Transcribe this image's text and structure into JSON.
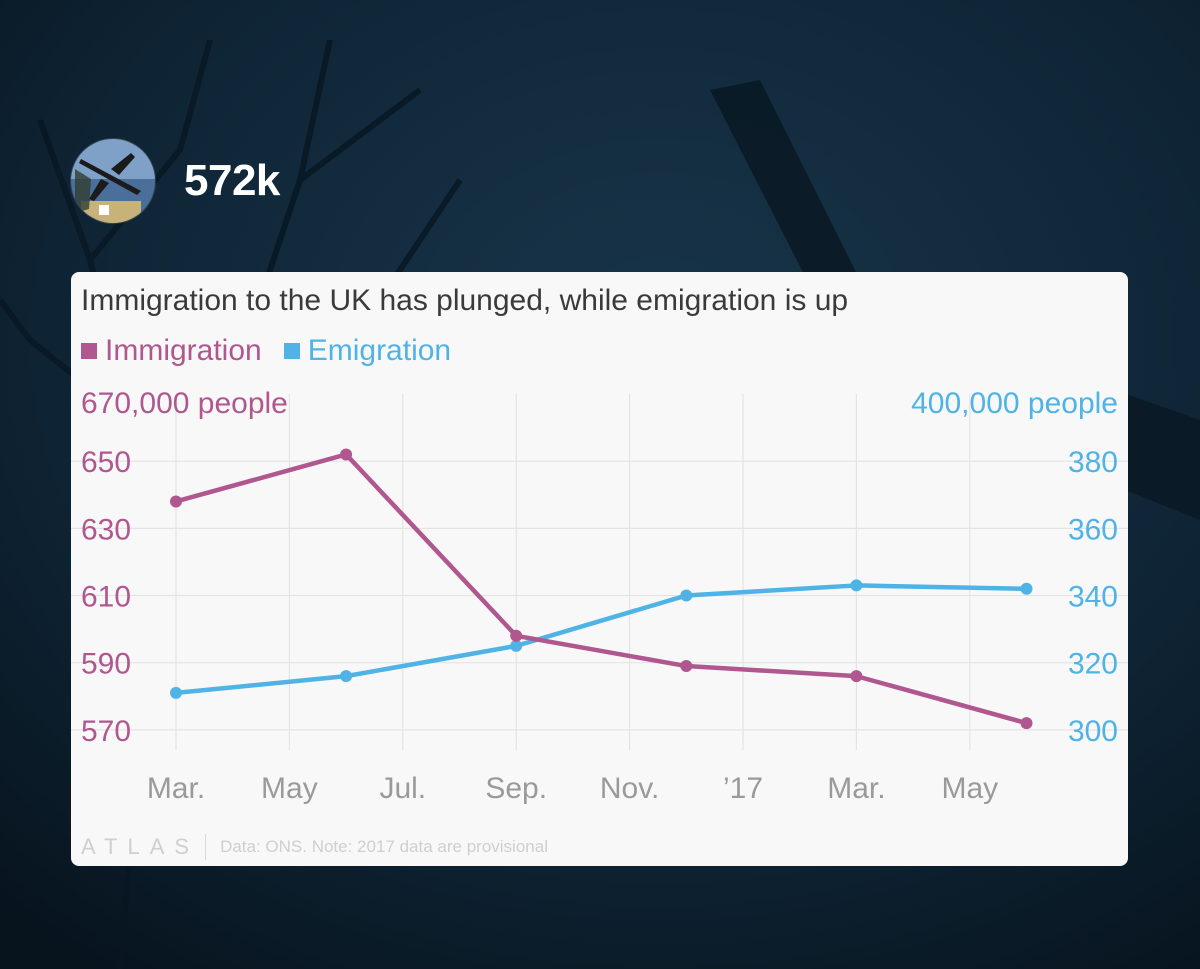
{
  "headline": "572k",
  "colors": {
    "immigration": "#b0578f",
    "emigration": "#4fb3e6",
    "background": "#0c1e2c",
    "card": "#f8f8f8"
  },
  "footer": {
    "brand": "ATLAS",
    "source": "Data: ONS. Note: 2017 data are provisional"
  },
  "chart_data": {
    "type": "line",
    "title": "Immigration to the UK has plunged, while emigration is up",
    "x_ticks": [
      "Mar.",
      "May",
      "Jul.",
      "Sep.",
      "Nov.",
      "’17",
      "Mar.",
      "May"
    ],
    "left_axis": {
      "top_label": "670,000 people",
      "ticks": [
        "650",
        "630",
        "610",
        "590",
        "570"
      ],
      "range": [
        564,
        670
      ]
    },
    "right_axis": {
      "top_label": "400,000 people",
      "ticks": [
        "380",
        "360",
        "340",
        "320",
        "300"
      ],
      "range": [
        294,
        400
      ]
    },
    "series": [
      {
        "name": "Immigration",
        "axis": "left",
        "x": [
          0,
          1.5,
          3,
          4.5,
          6,
          7.5
        ],
        "values": [
          638,
          652,
          598,
          589,
          586,
          572
        ]
      },
      {
        "name": "Emigration",
        "axis": "right",
        "x": [
          0,
          1.5,
          3,
          4.5,
          6,
          7.5
        ],
        "values": [
          311,
          316,
          325,
          340,
          343,
          342
        ]
      }
    ]
  }
}
